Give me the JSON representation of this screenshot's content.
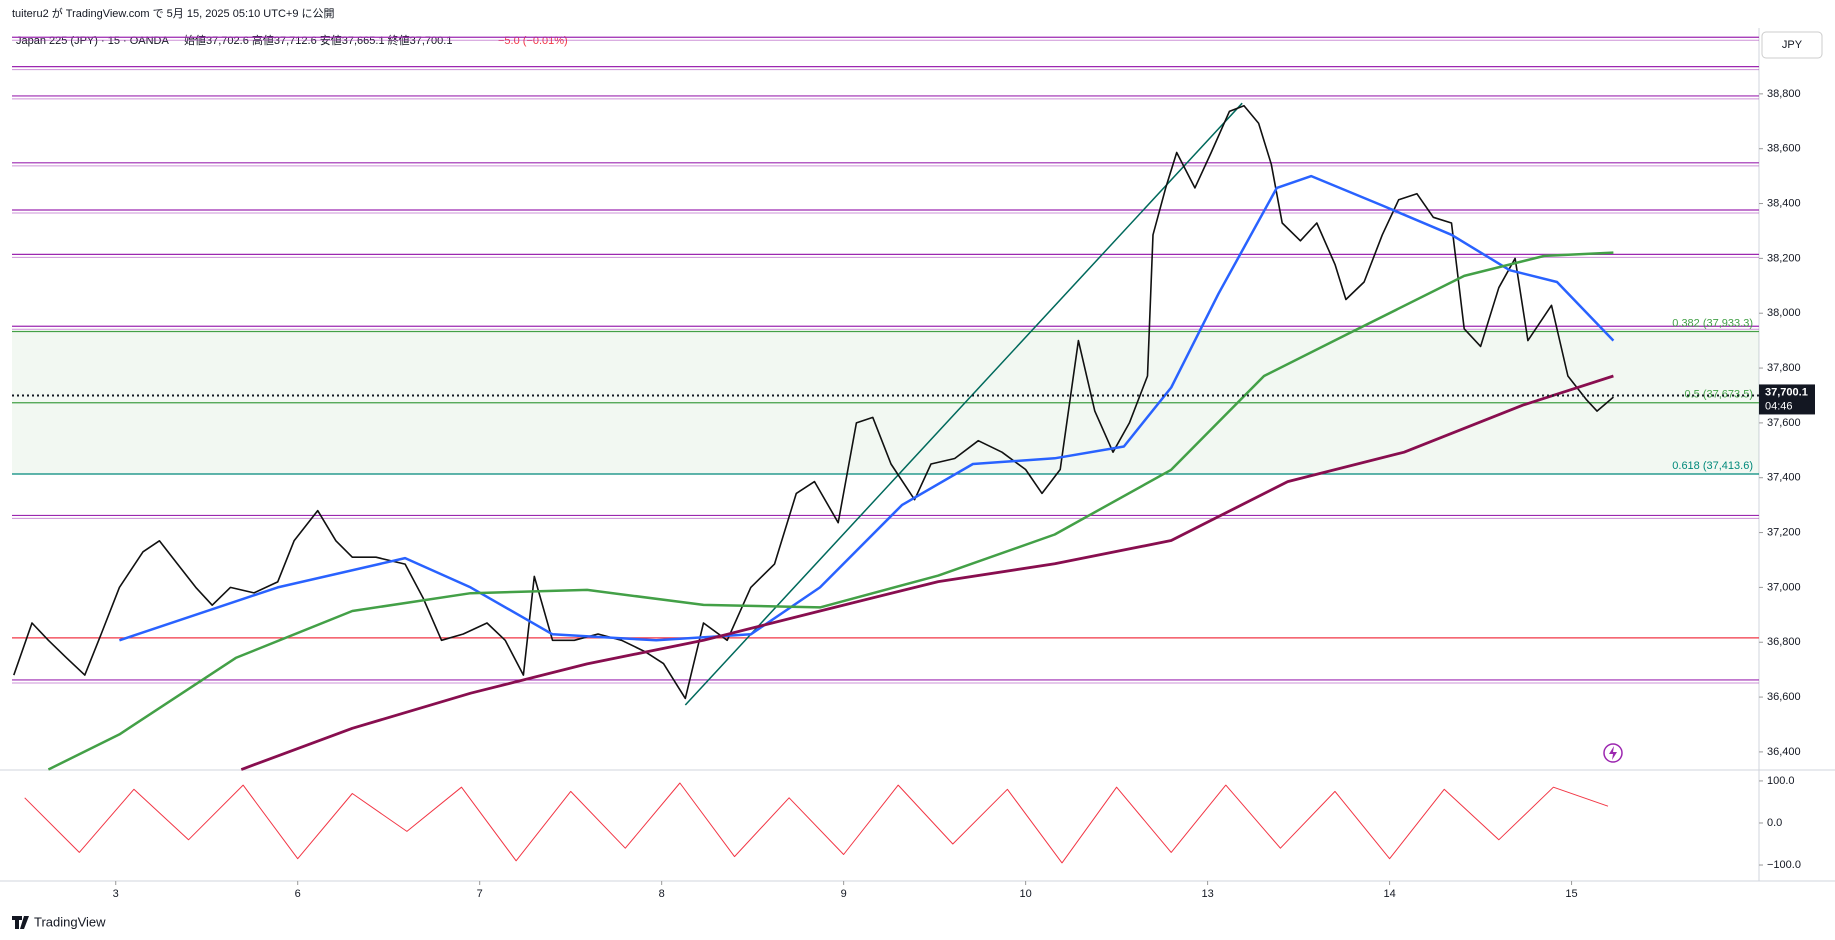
{
  "header": {
    "published": "tuiteru2 が TradingView.com で 5月 15, 2025 05:10 UTC+9 に公開",
    "symbol": "Japan 225 (JPY) · 15 · OANDA",
    "ohlc": "始値37,702.6 高値37,712.6 安値37,665.1 終値37,700.1",
    "change": "−5.0 (−0.01%)",
    "currency": "JPY"
  },
  "chart_data": {
    "type": "line",
    "xlim": [
      -0.57,
      9.03
    ],
    "xticks": [
      {
        "value": 0,
        "label": "3"
      },
      {
        "value": 1,
        "label": "6"
      },
      {
        "value": 2,
        "label": "7"
      },
      {
        "value": 3,
        "label": "8"
      },
      {
        "value": 4,
        "label": "9"
      },
      {
        "value": 5,
        "label": "10"
      },
      {
        "value": 6,
        "label": "13"
      },
      {
        "value": 7,
        "label": "14"
      },
      {
        "value": 8,
        "label": "15"
      }
    ],
    "ylim": [
      36334,
      39022
    ],
    "yticks": [
      {
        "value": 36400,
        "label": "36,400"
      },
      {
        "value": 36600,
        "label": "36,600"
      },
      {
        "value": 36800,
        "label": "36,800"
      },
      {
        "value": 37000,
        "label": "37,000"
      },
      {
        "value": 37200,
        "label": "37,200"
      },
      {
        "value": 37400,
        "label": "37,400"
      },
      {
        "value": 37600,
        "label": "37,600"
      },
      {
        "value": 37800,
        "label": "37,800"
      },
      {
        "value": 38000,
        "label": "38,000"
      },
      {
        "value": 38200,
        "label": "38,200"
      },
      {
        "value": 38400,
        "label": "38,400"
      },
      {
        "value": 38600,
        "label": "38,600"
      },
      {
        "value": 38800,
        "label": "38,800"
      }
    ],
    "series": [
      {
        "color": "#111111",
        "x": [
          -0.56,
          -0.46,
          -0.37,
          -0.27,
          -0.17,
          -0.08,
          0.02,
          0.15,
          0.24,
          0.34,
          0.44,
          0.53,
          0.63,
          0.76,
          0.89,
          0.98,
          1.11,
          1.21,
          1.3,
          1.43,
          1.59,
          1.69,
          1.79,
          1.91,
          2.04,
          2.14,
          2.24,
          2.3,
          2.4,
          2.52,
          2.65,
          2.78,
          2.91,
          3.01,
          3.13,
          3.23,
          3.36,
          3.49,
          3.62,
          3.74,
          3.84,
          3.97,
          4.07,
          4.16,
          4.26,
          4.39,
          4.48,
          4.61,
          4.74,
          4.87,
          5.0,
          5.09,
          5.19,
          5.29,
          5.38,
          5.48,
          5.57,
          5.67,
          5.7,
          5.77,
          5.83,
          5.93,
          6.02,
          6.12,
          6.2,
          6.28,
          6.35,
          6.41,
          6.51,
          6.6,
          6.7,
          6.76,
          6.86,
          6.96,
          7.05,
          7.15,
          7.24,
          7.34,
          7.41,
          7.5,
          7.6,
          7.69,
          7.76,
          7.89,
          7.98,
          8.08,
          8.14,
          8.23
        ],
        "values": [
          36680,
          36870,
          36807,
          36743,
          36680,
          36830,
          37000,
          37130,
          37170,
          37085,
          37000,
          36935,
          37000,
          36980,
          37020,
          37170,
          37280,
          37170,
          37110,
          37110,
          37085,
          36960,
          36807,
          36830,
          36870,
          36807,
          36680,
          37040,
          36807,
          36807,
          36830,
          36807,
          36765,
          36722,
          36595,
          36870,
          36807,
          37000,
          37085,
          37343,
          37386,
          37236,
          37600,
          37620,
          37450,
          37320,
          37450,
          37470,
          37535,
          37493,
          37430,
          37343,
          37430,
          37900,
          37643,
          37493,
          37600,
          37771,
          38286,
          38457,
          38586,
          38457,
          38586,
          38736,
          38757,
          38693,
          38543,
          38329,
          38264,
          38329,
          38178,
          38050,
          38114,
          38286,
          38414,
          38436,
          38350,
          38329,
          37943,
          37879,
          38093,
          38200,
          37900,
          38029,
          37771,
          37686,
          37643,
          37694
        ],
        "width": 1.6
      },
      {
        "color": "#2962ff",
        "x": [
          0.02,
          0.89,
          1.59,
          1.95,
          2.4,
          2.97,
          3.49,
          3.87,
          4.32,
          4.71,
          5.16,
          5.54,
          5.8,
          6.06,
          6.38,
          6.57,
          6.96,
          7.34,
          7.66,
          7.92,
          8.23
        ],
        "values": [
          36807,
          37000,
          37107,
          37000,
          36829,
          36807,
          36829,
          37000,
          37300,
          37450,
          37471,
          37514,
          37729,
          38071,
          38457,
          38500,
          38393,
          38286,
          38157,
          38114,
          37900
        ],
        "width": 2.5
      },
      {
        "color": "#43a047",
        "x": [
          -0.37,
          0.02,
          0.66,
          1.3,
          1.95,
          2.59,
          3.23,
          3.87,
          4.52,
          5.16,
          5.8,
          6.31,
          6.76,
          7.41,
          7.85,
          8.23
        ],
        "values": [
          36336,
          36464,
          36743,
          36914,
          36979,
          36991,
          36936,
          36927,
          37043,
          37193,
          37429,
          37771,
          37921,
          38136,
          38209,
          38221
        ],
        "width": 2.5
      },
      {
        "color": "#880e4f",
        "x": [
          0.69,
          1.3,
          1.95,
          2.59,
          3.23,
          3.87,
          4.52,
          5.16,
          5.8,
          6.44,
          7.08,
          7.73,
          8.23
        ],
        "values": [
          36336,
          36486,
          36614,
          36721,
          36807,
          36914,
          37021,
          37086,
          37171,
          37386,
          37493,
          37664,
          37771
        ],
        "width": 2.8
      }
    ],
    "levels": [
      39001,
      38894,
      38787,
      38543,
      38371,
      38209,
      37947,
      37257,
      36657
    ],
    "level_color": "#9c27b0",
    "red_level": 36816,
    "fib": [
      {
        "value": 37933.3,
        "label": "0.382 (37,933.3)",
        "color": "#43a047"
      },
      {
        "value": 37673.5,
        "label": "0.5 (37,673.5)",
        "color": "#43a047"
      },
      {
        "value": 37413.6,
        "label": "0.618 (37,413.6)",
        "color": "#00897b"
      }
    ],
    "trendline": {
      "x": [
        3.13,
        6.19
      ],
      "y": [
        36571,
        38766
      ]
    },
    "last_price": {
      "value": 37700.1,
      "label": "37,700.1"
    },
    "countdown": "04:46",
    "oscillator": {
      "color": "#f23645",
      "ylim": [
        -138,
        126
      ],
      "yticks": [
        {
          "value": 100,
          "label": "100.0"
        },
        {
          "value": 0,
          "label": "0.0"
        },
        {
          "value": -100,
          "label": "−100.0"
        }
      ],
      "x": [
        -0.5,
        -0.2,
        0.1,
        0.4,
        0.7,
        1.0,
        1.3,
        1.6,
        1.9,
        2.2,
        2.5,
        2.8,
        3.1,
        3.4,
        3.7,
        4.0,
        4.3,
        4.6,
        4.9,
        5.2,
        5.5,
        5.8,
        6.1,
        6.4,
        6.7,
        7.0,
        7.3,
        7.6,
        7.9,
        8.2
      ],
      "values": [
        60,
        -70,
        80,
        -40,
        90,
        -85,
        70,
        -20,
        85,
        -90,
        75,
        -60,
        95,
        -80,
        60,
        -75,
        90,
        -50,
        80,
        -95,
        85,
        -70,
        90,
        -60,
        75,
        -85,
        80,
        -40,
        85,
        40
      ]
    }
  },
  "footer": {
    "brand": "TradingView"
  }
}
